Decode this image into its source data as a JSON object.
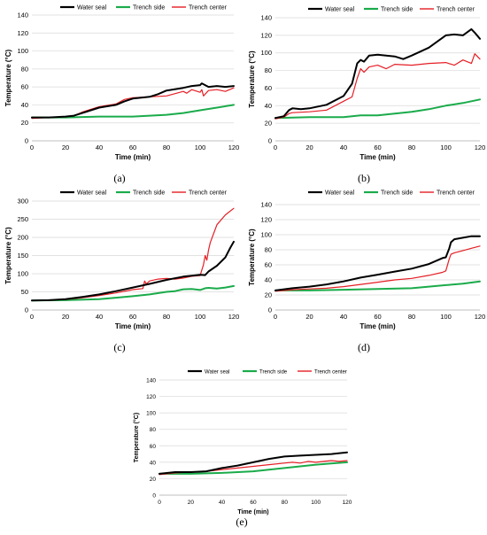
{
  "legend_labels": [
    "Water seal",
    "Trench side",
    "Trench center"
  ],
  "colors": {
    "Water seal": "#000000",
    "Trench side": "#1aab4a",
    "Trench center": "#e51e25",
    "grid": "#d9d9d9",
    "axis": "#bfbfbf"
  },
  "chart_data": [
    {
      "panel": "(a)",
      "type": "line",
      "xlabel": "Time (min)",
      "ylabel": "Temperature (°C)",
      "xlim": [
        0,
        120
      ],
      "ylim": [
        0,
        140
      ],
      "xticks": [
        0,
        20,
        40,
        60,
        80,
        100,
        120
      ],
      "yticks": [
        0,
        20,
        40,
        60,
        80,
        100,
        120,
        140
      ],
      "grid": "horizontal",
      "legend": "top",
      "series": [
        {
          "name": "Water seal",
          "x": [
            0,
            10,
            20,
            25,
            30,
            40,
            50,
            55,
            60,
            70,
            75,
            80,
            90,
            95,
            100,
            101,
            105,
            110,
            115,
            120
          ],
          "y": [
            26,
            26,
            27,
            28,
            31,
            37,
            40,
            44,
            47,
            49,
            52,
            56,
            59,
            61,
            62,
            64,
            60,
            61,
            60,
            61
          ]
        },
        {
          "name": "Trench side",
          "x": [
            0,
            20,
            40,
            60,
            80,
            90,
            100,
            110,
            120
          ],
          "y": [
            26,
            26,
            27,
            27,
            29,
            31,
            34,
            37,
            40
          ]
        },
        {
          "name": "Trench center",
          "x": [
            0,
            10,
            20,
            25,
            30,
            40,
            50,
            55,
            60,
            70,
            80,
            90,
            92,
            95,
            100,
            101,
            102,
            105,
            110,
            115,
            120
          ],
          "y": [
            25,
            26,
            27,
            28,
            32,
            38,
            41,
            46,
            48,
            49,
            50,
            55,
            53,
            57,
            54,
            57,
            50,
            56,
            57,
            55,
            59
          ]
        }
      ]
    },
    {
      "panel": "(b)",
      "type": "line",
      "xlabel": "Time (min)",
      "ylabel": "Temperature (°C)",
      "xlim": [
        0,
        120
      ],
      "ylim": [
        0,
        140
      ],
      "xticks": [
        0,
        20,
        40,
        60,
        80,
        100,
        120
      ],
      "yticks": [
        0,
        20,
        40,
        60,
        80,
        100,
        120,
        140
      ],
      "grid": "horizontal",
      "legend": "top",
      "series": [
        {
          "name": "Water seal",
          "x": [
            0,
            5,
            8,
            10,
            15,
            20,
            30,
            40,
            45,
            48,
            50,
            52,
            55,
            60,
            70,
            75,
            80,
            90,
            100,
            105,
            110,
            115,
            117,
            120
          ],
          "y": [
            26,
            28,
            35,
            37,
            36,
            37,
            41,
            51,
            65,
            88,
            92,
            90,
            97,
            98,
            96,
            93,
            97,
            106,
            120,
            121,
            120,
            127,
            123,
            116
          ]
        },
        {
          "name": "Trench side",
          "x": [
            0,
            20,
            40,
            45,
            50,
            60,
            70,
            80,
            90,
            100,
            110,
            120
          ],
          "y": [
            26,
            27,
            27,
            28,
            29,
            29,
            31,
            33,
            36,
            40,
            43,
            47
          ]
        },
        {
          "name": "Trench center",
          "x": [
            0,
            5,
            8,
            10,
            20,
            30,
            40,
            45,
            48,
            50,
            52,
            55,
            60,
            65,
            70,
            80,
            90,
            100,
            105,
            110,
            115,
            117,
            120
          ],
          "y": [
            25,
            27,
            31,
            32,
            33,
            35,
            45,
            50,
            71,
            82,
            78,
            84,
            86,
            82,
            87,
            86,
            88,
            89,
            86,
            92,
            88,
            99,
            93
          ]
        }
      ]
    },
    {
      "panel": "(c)",
      "type": "line",
      "xlabel": "Time (min)",
      "ylabel": "Temperature (°C)",
      "xlim": [
        0,
        120
      ],
      "ylim": [
        0,
        300
      ],
      "xticks": [
        0,
        20,
        40,
        60,
        80,
        100,
        120
      ],
      "yticks": [
        0,
        50,
        100,
        150,
        200,
        250,
        300
      ],
      "grid": "horizontal",
      "legend": "top",
      "series": [
        {
          "name": "Water seal",
          "x": [
            0,
            10,
            20,
            30,
            40,
            50,
            60,
            70,
            80,
            90,
            100,
            103,
            105,
            110,
            115,
            118,
            120
          ],
          "y": [
            26,
            27,
            30,
            36,
            43,
            52,
            62,
            72,
            83,
            92,
            97,
            96,
            106,
            122,
            145,
            172,
            188
          ]
        },
        {
          "name": "Trench side",
          "x": [
            0,
            20,
            40,
            50,
            60,
            70,
            80,
            85,
            90,
            95,
            100,
            103,
            105,
            110,
            115,
            120
          ],
          "y": [
            26,
            27,
            30,
            34,
            38,
            43,
            50,
            52,
            57,
            58,
            55,
            60,
            61,
            59,
            62,
            66
          ]
        },
        {
          "name": "Trench center",
          "x": [
            0,
            10,
            20,
            30,
            40,
            50,
            60,
            66,
            67,
            68,
            70,
            75,
            80,
            85,
            90,
            95,
            100,
            102,
            103,
            104,
            105,
            106,
            110,
            115,
            120
          ],
          "y": [
            26,
            27,
            29,
            34,
            40,
            47,
            56,
            59,
            80,
            72,
            80,
            85,
            87,
            85,
            88,
            93,
            95,
            125,
            150,
            137,
            165,
            185,
            235,
            262,
            280
          ]
        }
      ]
    },
    {
      "panel": "(d)",
      "type": "line",
      "xlabel": "Time (min)",
      "ylabel": "Temperature (°C)",
      "xlim": [
        0,
        120
      ],
      "ylim": [
        0,
        140
      ],
      "xticks": [
        0,
        20,
        40,
        60,
        80,
        100,
        120
      ],
      "yticks": [
        0,
        20,
        40,
        60,
        80,
        100,
        120,
        140
      ],
      "grid": "horizontal",
      "legend": "top",
      "series": [
        {
          "name": "Water seal",
          "x": [
            0,
            10,
            20,
            30,
            40,
            50,
            60,
            70,
            80,
            90,
            98,
            100,
            102,
            103,
            105,
            110,
            115,
            120
          ],
          "y": [
            26,
            29,
            31,
            34,
            38,
            43,
            47,
            51,
            55,
            61,
            69,
            70,
            82,
            90,
            94,
            96,
            98,
            98
          ]
        },
        {
          "name": "Trench side",
          "x": [
            0,
            20,
            40,
            60,
            80,
            90,
            100,
            110,
            120
          ],
          "y": [
            26,
            26,
            27,
            28,
            29,
            31,
            33,
            35,
            38
          ]
        },
        {
          "name": "Trench center",
          "x": [
            0,
            10,
            20,
            30,
            40,
            50,
            60,
            70,
            80,
            90,
            98,
            100,
            102,
            103,
            105,
            110,
            115,
            120
          ],
          "y": [
            25,
            27,
            28,
            29,
            31,
            34,
            37,
            40,
            42,
            46,
            50,
            52,
            68,
            74,
            76,
            79,
            82,
            85
          ]
        }
      ]
    },
    {
      "panel": "(e)",
      "type": "line",
      "xlabel": "Time (min)",
      "ylabel": "Temperature (°C)",
      "xlim": [
        0,
        120
      ],
      "ylim": [
        0,
        140
      ],
      "xticks": [
        0,
        20,
        40,
        60,
        80,
        100,
        120
      ],
      "yticks": [
        0,
        20,
        40,
        60,
        80,
        100,
        120,
        140
      ],
      "grid": "horizontal",
      "legend": "top",
      "series": [
        {
          "name": "Water seal",
          "x": [
            0,
            10,
            20,
            30,
            40,
            50,
            60,
            70,
            80,
            90,
            100,
            110,
            120
          ],
          "y": [
            26,
            28,
            28,
            29,
            33,
            36,
            40,
            44,
            47,
            48,
            49,
            50,
            52
          ]
        },
        {
          "name": "Trench side",
          "x": [
            0,
            20,
            40,
            60,
            80,
            100,
            120
          ],
          "y": [
            26,
            26,
            27,
            29,
            33,
            37,
            40
          ]
        },
        {
          "name": "Trench center",
          "x": [
            0,
            10,
            20,
            30,
            40,
            50,
            60,
            70,
            80,
            85,
            90,
            95,
            100,
            105,
            110,
            115,
            120
          ],
          "y": [
            25,
            27,
            28,
            29,
            31,
            33,
            35,
            37,
            39,
            40,
            39,
            41,
            40,
            41,
            42,
            41,
            42
          ]
        }
      ]
    }
  ]
}
